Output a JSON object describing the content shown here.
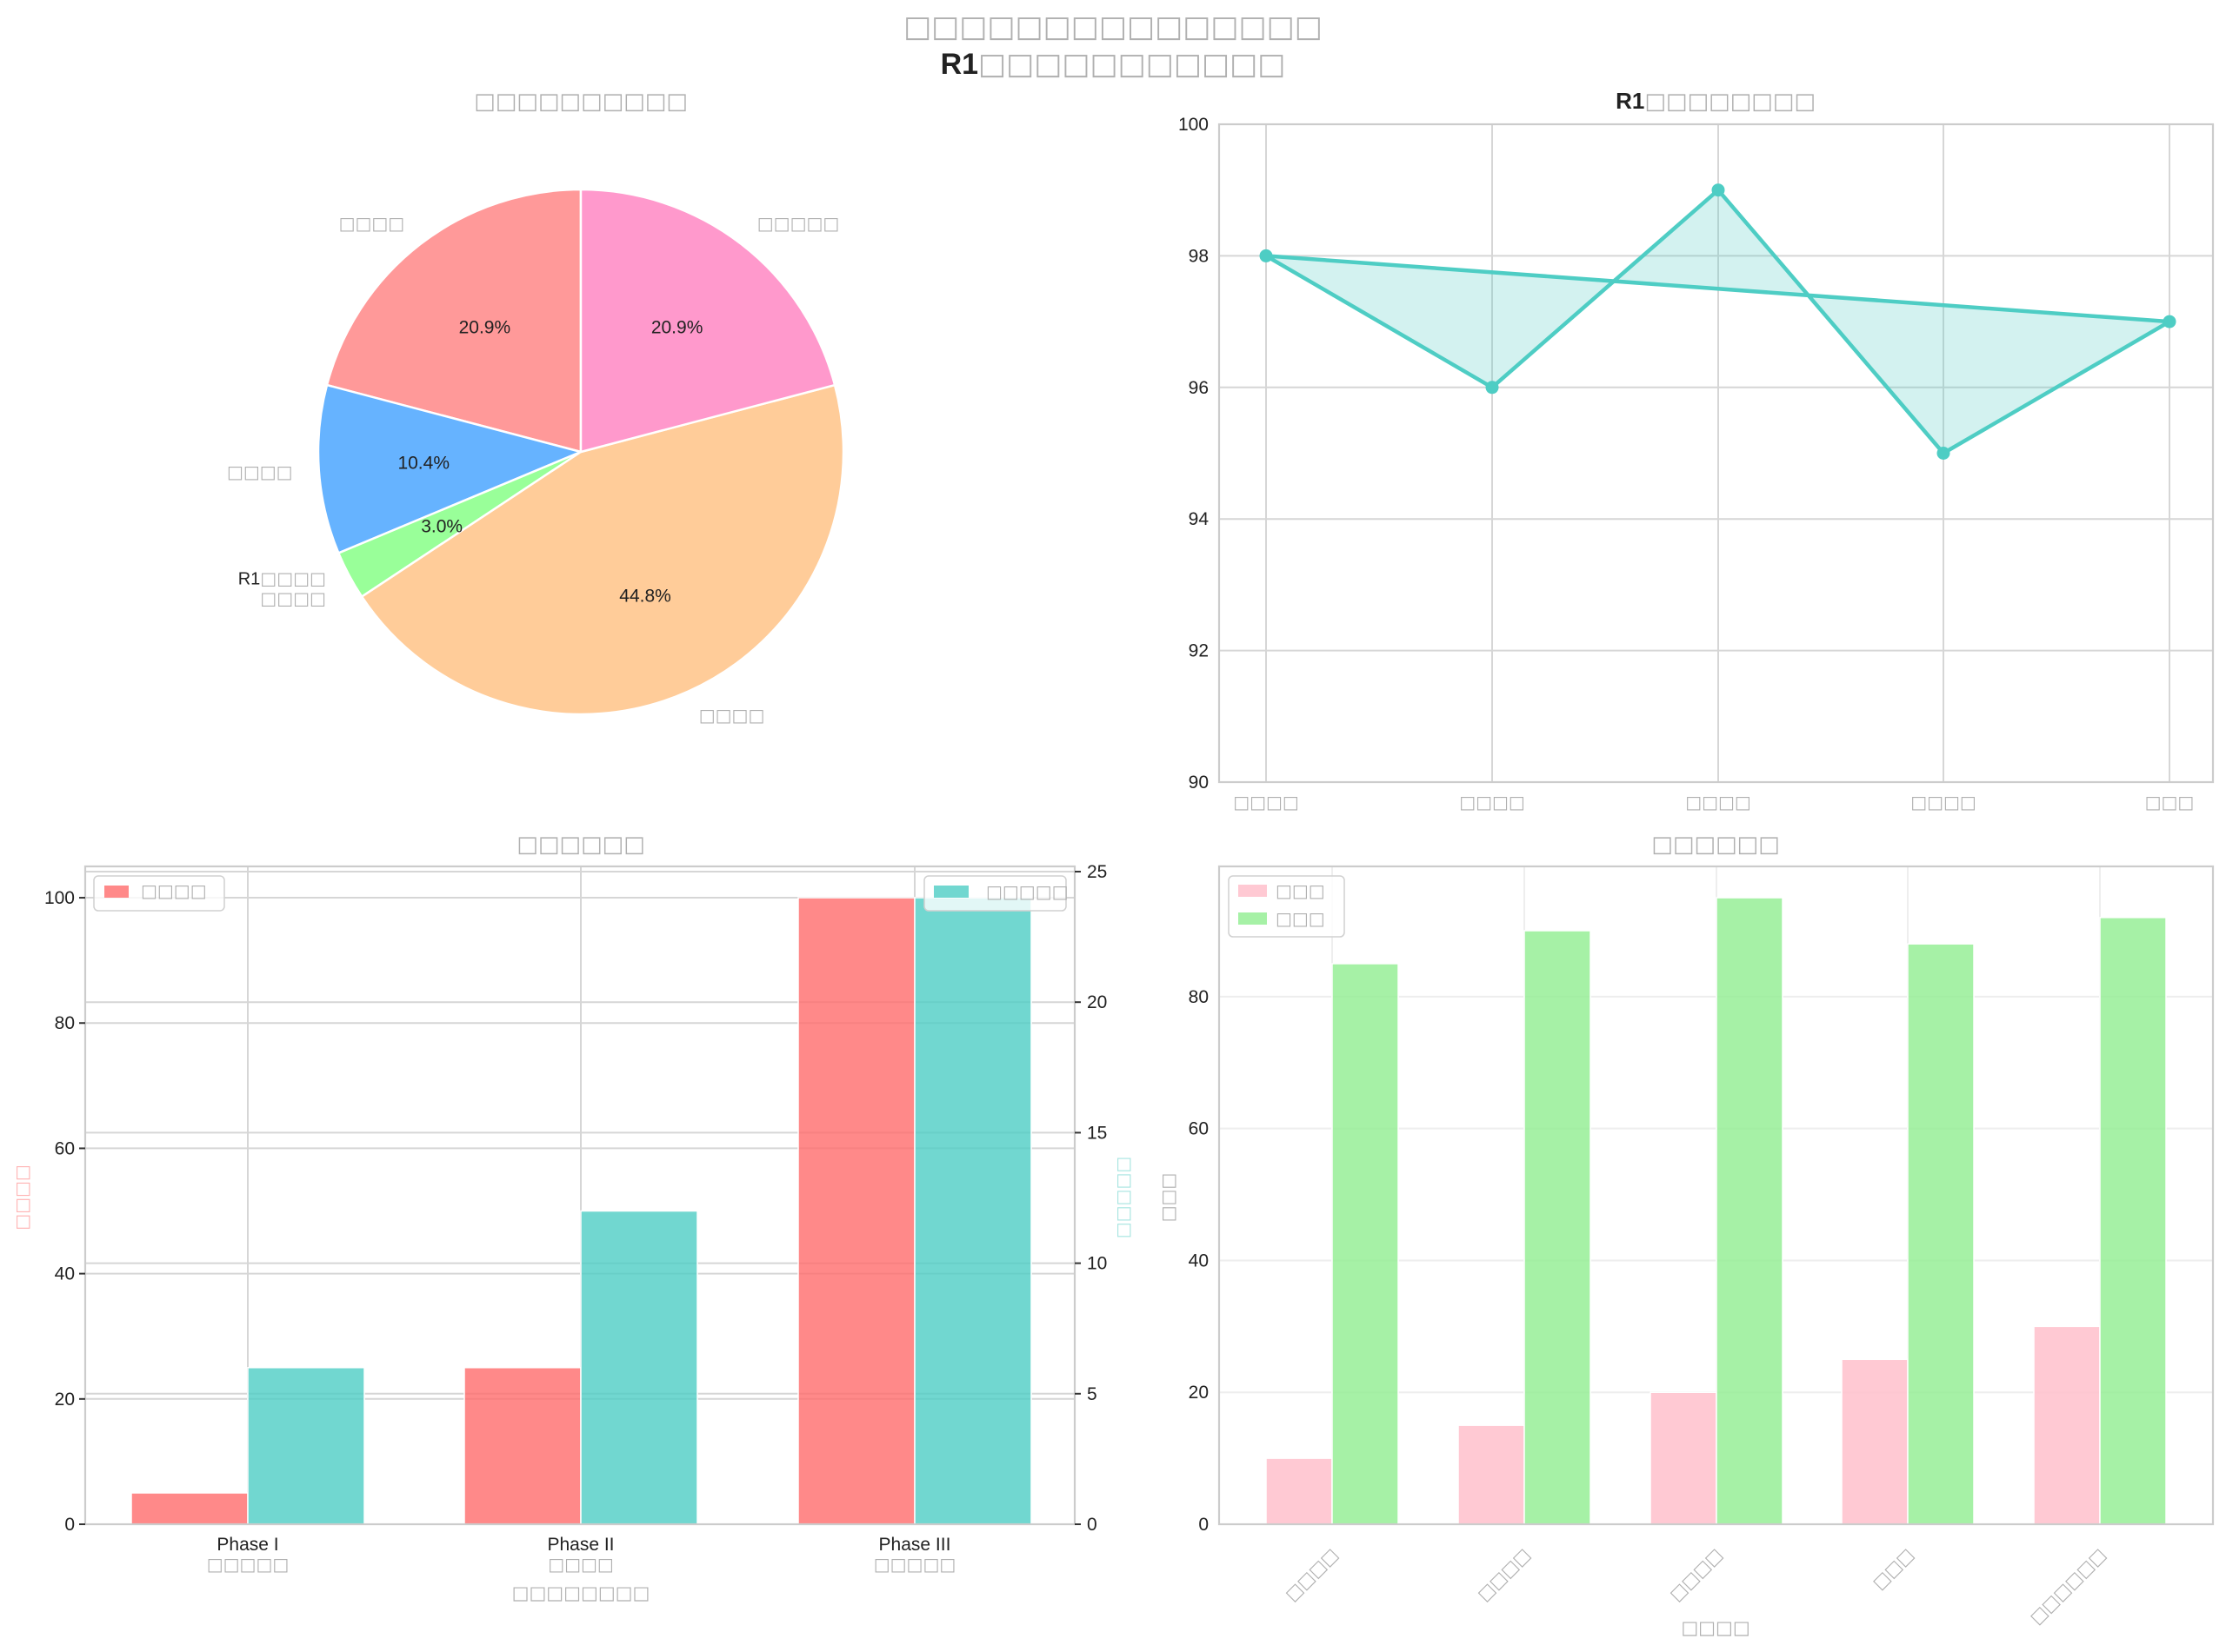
{
  "suptitle": {
    "line1": "□□□□□□□□□□□□□□□",
    "line2_prefix": "R1",
    "line2_rest": "□□□□□□□□□□□"
  },
  "colors": {
    "pie": [
      "#ff9999",
      "#66b3ff",
      "#99ff99",
      "#ffcc99",
      "#ff99cc"
    ],
    "line": "#4ecdc4",
    "bl_left": "#ff6b6b",
    "bl_right": "#4ecdc4",
    "br_a": "#ffc0cb",
    "br_b": "#90ee90"
  },
  "chart_data": [
    {
      "type": "pie",
      "title": "□□□□□□□□□□",
      "labels": [
        "□□□□",
        "□□□□",
        "R1□□□□\n□□□□",
        "□□□□",
        "□□□□□"
      ],
      "values": [
        20.9,
        10.4,
        3.0,
        44.8,
        20.9
      ],
      "autopct": [
        "20.9%",
        "10.4%",
        "3.0%",
        "44.8%",
        "20.9%"
      ],
      "startangle": 90
    },
    {
      "type": "line",
      "title_prefix": "R1",
      "title": "□□□□□□□□",
      "categories": [
        "□□□□",
        "□□□□",
        "□□□□",
        "□□□□",
        "□□□"
      ],
      "values": [
        98,
        96,
        99,
        95,
        97
      ],
      "closed": true,
      "filled": true,
      "ylim": [
        90,
        100
      ],
      "yticks": [
        90,
        92,
        94,
        96,
        98,
        100
      ],
      "grid": true
    },
    {
      "type": "bar",
      "title": "□□□□□□",
      "categories": [
        "Phase I",
        "Phase II",
        "Phase III"
      ],
      "category_sublabels": [
        "□□□□□",
        "□□□□",
        "□□□□□"
      ],
      "xlabel": "□□□□□□□□",
      "ylabel": "□□□□",
      "ylabel_right": "□□□□□",
      "series": [
        {
          "name": "□□□□",
          "axis": "left",
          "values": [
            5,
            25,
            100
          ]
        },
        {
          "name": "□□□□□",
          "axis": "right",
          "values": [
            6,
            12,
            24
          ]
        }
      ],
      "ylim": [
        0,
        105
      ],
      "ylim_right": [
        0,
        25.2
      ],
      "yticks": [
        0,
        20,
        40,
        60,
        80,
        100
      ],
      "yticks_right": [
        0,
        5,
        10,
        15,
        20,
        25
      ],
      "legend": [
        "top-left",
        "top-right"
      ],
      "grid": true
    },
    {
      "type": "bar",
      "title": "□□□□□□",
      "categories": [
        "□□□□",
        "□□□□",
        "□□□□",
        "□□□",
        "□□□□□□"
      ],
      "xlabel": "□□□□",
      "ylabel": "□□□",
      "series": [
        {
          "name": "□□□",
          "values": [
            10,
            15,
            20,
            25,
            30
          ]
        },
        {
          "name": "□□□",
          "values": [
            85,
            90,
            95,
            88,
            92
          ]
        }
      ],
      "ylim": [
        0,
        99.75
      ],
      "yticks": [
        0,
        20,
        40,
        60,
        80
      ],
      "legend": "top-left",
      "grid": true
    }
  ]
}
